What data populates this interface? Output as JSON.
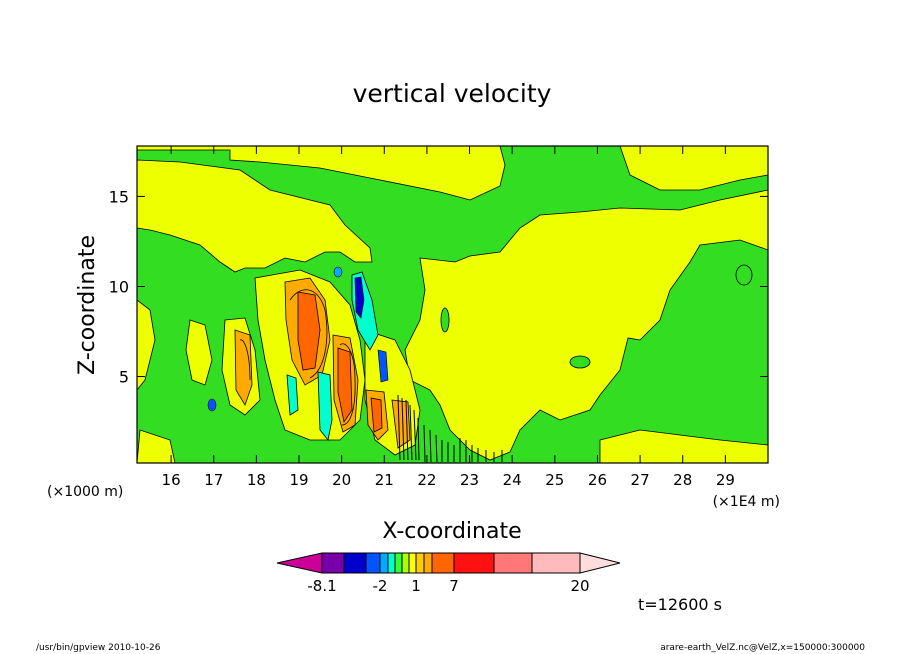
{
  "chart_data": {
    "type": "heatmap",
    "title": "vertical velocity",
    "xlabel": "X-coordinate",
    "ylabel": "Z-coordinate",
    "x_unit_left": "(×1000 m)",
    "x_unit_right": "(×1E4 m)",
    "xlim": [
      15.2,
      30.0
    ],
    "ylim": [
      0.2,
      17.8
    ],
    "x_ticks": [
      16,
      17,
      18,
      19,
      20,
      21,
      22,
      23,
      24,
      25,
      26,
      27,
      28,
      29
    ],
    "y_ticks": [
      5,
      10,
      15
    ],
    "colorbar": {
      "levels": [
        -8.1,
        -6,
        -4,
        -2,
        -1,
        -0.5,
        0,
        0.5,
        1,
        2,
        4,
        7,
        10,
        15,
        20
      ],
      "colors": [
        "#cc0099",
        "#7700aa",
        "#0000cc",
        "#0055ff",
        "#00aaff",
        "#00ffcc",
        "#33ff33",
        "#aaff00",
        "#ffff00",
        "#ffcc00",
        "#ffaa00",
        "#ff6600",
        "#ff1111",
        "#ff7777",
        "#ffbbbb",
        "#ffdddd"
      ],
      "labels": [
        "-8.1",
        "-2",
        "1",
        "7",
        "20"
      ]
    },
    "time_label": "t=12600 s"
  },
  "footer": {
    "left": "/usr/bin/gpview  2010-10-26",
    "right": "arare-earth_VelZ.nc@VelZ,x=150000:300000"
  }
}
